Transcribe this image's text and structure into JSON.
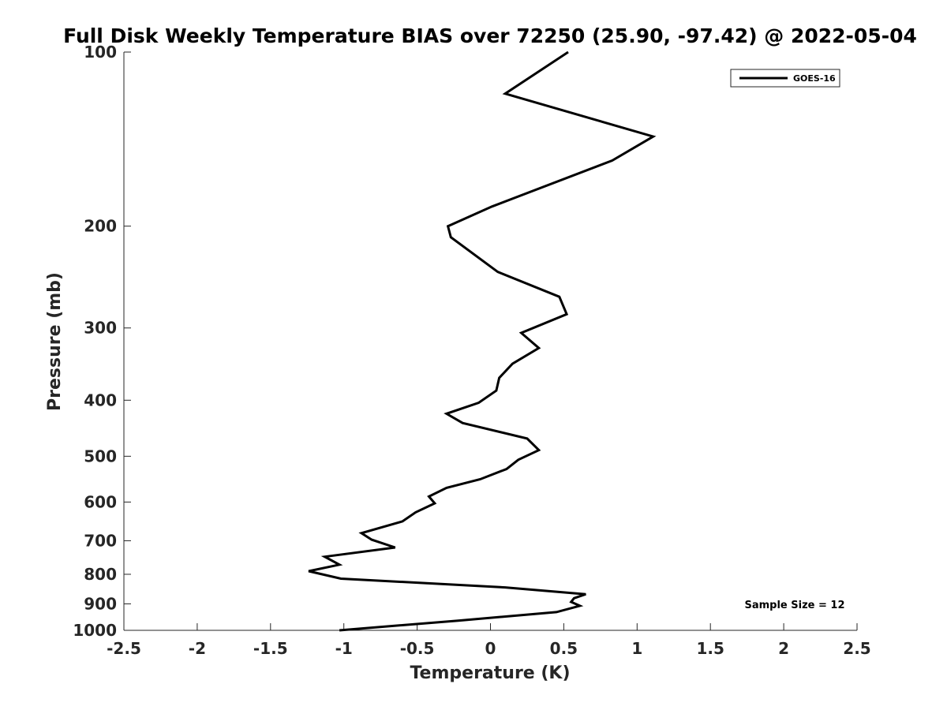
{
  "chart_data": {
    "type": "line",
    "title": "Full Disk Weekly Temperature BIAS over 72250 (25.90, -97.42) @ 2022-05-04",
    "xlabel": "Temperature (K)",
    "ylabel": "Pressure (mb)",
    "xlim": [
      -2.5,
      2.5
    ],
    "ylim": [
      100,
      1000
    ],
    "yscale": "log",
    "yreversed": true,
    "grid": false,
    "legend_position": "top-right",
    "xticks": [
      "-2.5",
      "-2",
      "-1.5",
      "-1",
      "-0.5",
      "0",
      "0.5",
      "1",
      "1.5",
      "2",
      "2.5"
    ],
    "xtick_values": [
      -2.5,
      -2,
      -1.5,
      -1,
      -0.5,
      0,
      0.5,
      1,
      1.5,
      2,
      2.5
    ],
    "yticks": [
      "100",
      "200",
      "300",
      "400",
      "500",
      "600",
      "700",
      "800",
      "900",
      "1000"
    ],
    "ytick_values": [
      100,
      200,
      300,
      400,
      500,
      600,
      700,
      800,
      900,
      1000
    ],
    "series": [
      {
        "name": "GOES-16",
        "color": "#000000",
        "x": [
          0.53,
          0.1,
          1.11,
          0.83,
          0.01,
          -0.29,
          -0.27,
          0.05,
          0.47,
          0.52,
          0.21,
          0.33,
          0.15,
          0.06,
          0.04,
          -0.08,
          -0.3,
          -0.19,
          0.25,
          0.33,
          0.19,
          0.11,
          -0.07,
          -0.3,
          -0.42,
          -0.38,
          -0.51,
          -0.6,
          -0.88,
          -0.81,
          -0.65,
          -1.13,
          -1.03,
          -1.24,
          -1.02,
          0.1,
          0.65,
          0.57,
          0.55,
          0.61,
          0.45,
          -0.22,
          -1.03
        ],
        "y": [
          100,
          118,
          140,
          154,
          185,
          200,
          209,
          240,
          265,
          284,
          306,
          325,
          346,
          366,
          385,
          404,
          422,
          438,
          466,
          488,
          507,
          526,
          548,
          567,
          587,
          603,
          625,
          648,
          679,
          697,
          719,
          746,
          770,
          790,
          814,
          843,
          866,
          880,
          893,
          907,
          930,
          962,
          1000
        ]
      }
    ],
    "annotation": "Sample Size = 12"
  }
}
